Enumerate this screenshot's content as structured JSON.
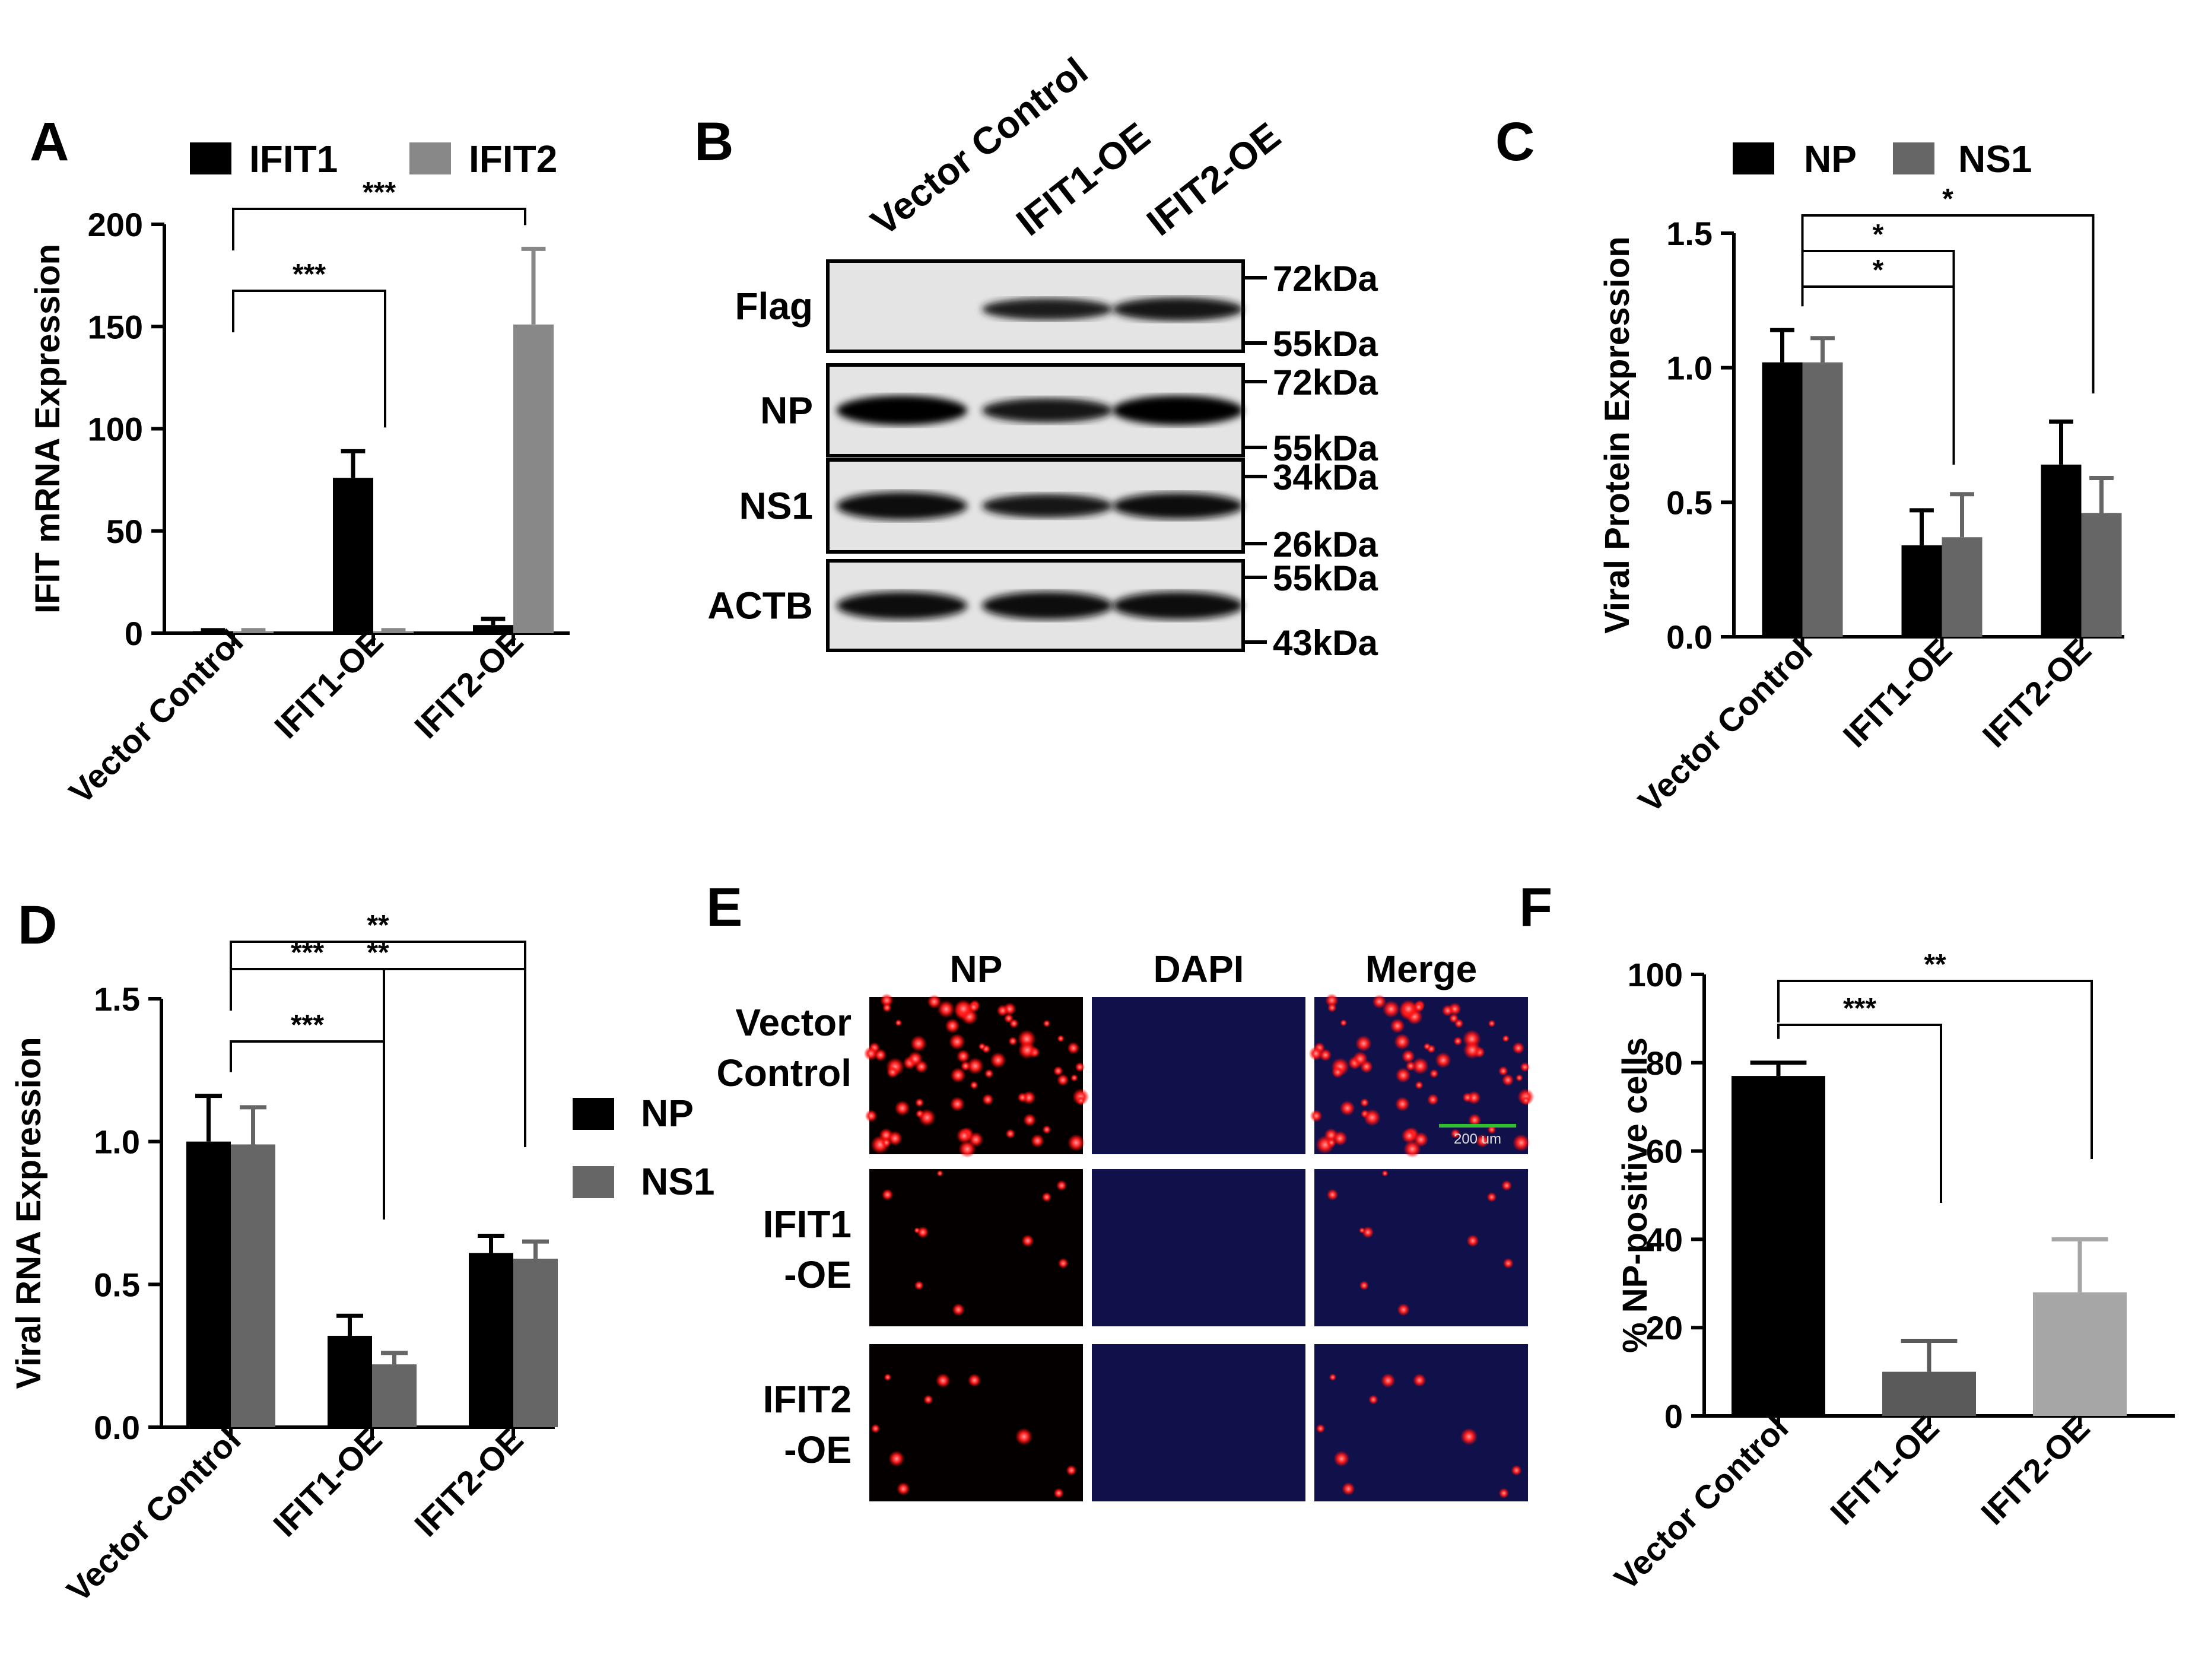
{
  "panels": {
    "A": {
      "letter": "A",
      "legend": [
        {
          "label": "IFIT1",
          "color": "#000000"
        },
        {
          "label": "IFIT2",
          "color": "#888888"
        }
      ]
    },
    "B": {
      "letter": "B",
      "lanes": [
        "Vector Control",
        "IFIT1-OE",
        "IFIT2-OE"
      ],
      "rows": [
        {
          "label": "Flag",
          "markers": [
            "72kDa",
            "55kDa"
          ],
          "bands": [
            0.0,
            0.55,
            0.65
          ]
        },
        {
          "label": "NP",
          "markers": [
            "72kDa",
            "55kDa"
          ],
          "bands": [
            1.0,
            0.7,
            1.0
          ]
        },
        {
          "label": "NS1",
          "markers": [
            "34kDa",
            "26kDa"
          ],
          "bands": [
            0.9,
            0.65,
            0.8
          ]
        },
        {
          "label": "ACTB",
          "markers": [
            "55kDa",
            "43kDa"
          ],
          "bands": [
            0.9,
            0.9,
            0.9
          ]
        }
      ]
    },
    "C": {
      "letter": "C",
      "legend": [
        {
          "label": "NP",
          "color": "#000000"
        },
        {
          "label": "NS1",
          "color": "#666666"
        }
      ]
    },
    "D": {
      "letter": "D",
      "legend": [
        {
          "label": "NP",
          "color": "#000000"
        },
        {
          "label": "NS1",
          "color": "#666666"
        }
      ]
    },
    "E": {
      "letter": "E",
      "columns": [
        "NP",
        "DAPI",
        "Merge"
      ],
      "rows": [
        {
          "label_lines": [
            "Vector",
            "Control"
          ],
          "np_density": "high"
        },
        {
          "label_lines": [
            "IFIT1",
            "-OE"
          ],
          "np_density": "low"
        },
        {
          "label_lines": [
            "IFIT2",
            "-OE"
          ],
          "np_density": "low"
        }
      ],
      "scale_bar": "200 um",
      "colors": {
        "np": "#ff2020",
        "dapi_bg": "#10104a",
        "bg": "#050000"
      }
    },
    "F": {
      "letter": "F"
    }
  },
  "chart_data": [
    {
      "id": "A",
      "type": "bar",
      "categories": [
        "Vector Control",
        "IFIT1-OE",
        "IFIT2-OE"
      ],
      "series": [
        {
          "name": "IFIT1",
          "values": [
            1,
            76,
            4
          ],
          "errors": [
            0.5,
            13,
            3
          ],
          "color": "#000000"
        },
        {
          "name": "IFIT2",
          "values": [
            1,
            1,
            151
          ],
          "errors": [
            0.5,
            0.5,
            37
          ],
          "color": "#888888"
        }
      ],
      "ylabel": "IFIT mRNA Expression",
      "ylim": [
        0,
        200
      ],
      "yticks": [
        "0",
        "50",
        "100",
        "150",
        "200"
      ],
      "significance": [
        {
          "from": "Vector Control",
          "to": "IFIT1-OE",
          "label": "***"
        },
        {
          "from": "Vector Control",
          "to": "IFIT2-OE",
          "label": "***"
        }
      ]
    },
    {
      "id": "C",
      "type": "bar",
      "categories": [
        "Vector Control",
        "IFIT1-OE",
        "IFIT2-OE"
      ],
      "series": [
        {
          "name": "NP",
          "values": [
            1.02,
            0.34,
            0.64
          ],
          "errors": [
            0.12,
            0.13,
            0.16
          ],
          "color": "#000000"
        },
        {
          "name": "NS1",
          "values": [
            1.02,
            0.37,
            0.46
          ],
          "errors": [
            0.09,
            0.16,
            0.13
          ],
          "color": "#666666"
        }
      ],
      "ylabel": "Viral Protein Expression",
      "ylim": [
        0,
        1.5
      ],
      "yticks": [
        "0.0",
        "0.5",
        "1.0",
        "1.5"
      ],
      "significance": [
        {
          "from": "Vector Control",
          "to": "IFIT1-OE",
          "label": "*"
        },
        {
          "from": "Vector Control",
          "to": "IFIT1-OE",
          "label": "*"
        },
        {
          "from": "Vector Control",
          "to": "IFIT2-OE",
          "label": "*"
        }
      ]
    },
    {
      "id": "D",
      "type": "bar",
      "categories": [
        "Vector Control",
        "IFIT1-OE",
        "IFIT2-OE"
      ],
      "series": [
        {
          "name": "NP",
          "values": [
            1.0,
            0.32,
            0.61
          ],
          "errors": [
            0.16,
            0.07,
            0.06
          ],
          "color": "#000000"
        },
        {
          "name": "NS1",
          "values": [
            0.99,
            0.22,
            0.59
          ],
          "errors": [
            0.13,
            0.04,
            0.06
          ],
          "color": "#666666"
        }
      ],
      "ylabel": "Viral RNA Expression",
      "ylim": [
        0,
        1.5
      ],
      "yticks": [
        "0.0",
        "0.5",
        "1.0",
        "1.5"
      ],
      "significance": [
        {
          "from": "Vector Control",
          "to": "IFIT1-OE",
          "label": "***"
        },
        {
          "from": "Vector Control",
          "to": "IFIT2-OE",
          "label": "**"
        },
        {
          "from": "Vector Control",
          "to": "IFIT1-OE",
          "label": "***"
        },
        {
          "from": "Vector Control",
          "to": "IFIT2-OE",
          "label": "**"
        }
      ]
    },
    {
      "id": "F",
      "type": "bar",
      "categories": [
        "Vector Control",
        "IFIT1-OE",
        "IFIT2-OE"
      ],
      "series": [
        {
          "values": [
            77,
            10,
            28
          ],
          "errors": [
            3,
            7,
            12
          ],
          "colors": [
            "#000000",
            "#5a5a5a",
            "#a6a6a6"
          ]
        }
      ],
      "ylabel": "% NP-positive cells",
      "ylim": [
        0,
        100
      ],
      "yticks": [
        "0",
        "20",
        "40",
        "60",
        "80",
        "100"
      ],
      "significance": [
        {
          "from": "Vector Control",
          "to": "IFIT1-OE",
          "label": "***"
        },
        {
          "from": "Vector Control",
          "to": "IFIT2-OE",
          "label": "**"
        }
      ]
    }
  ]
}
